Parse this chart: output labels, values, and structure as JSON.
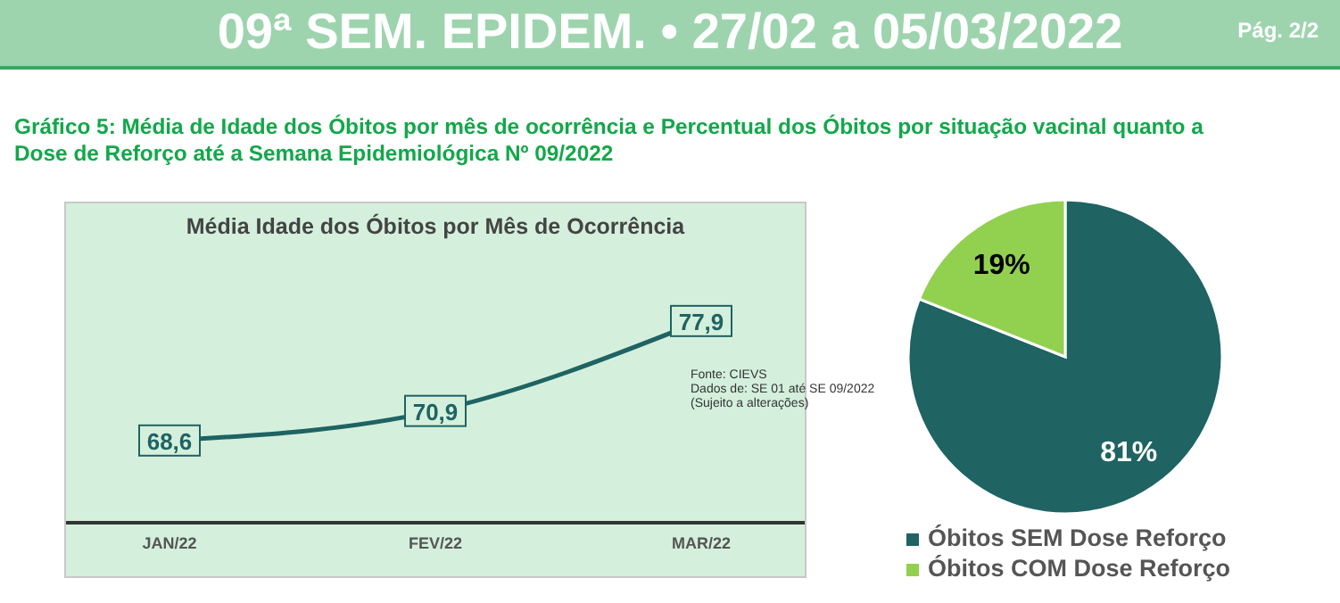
{
  "chart_data": [
    {
      "type": "other",
      "title": "09ª SEM. EPIDEM. • 27/02 a 05/03/2022",
      "subtitle": "Gráfico 5: Média de Idade dos Óbitos por mês de ocorrência e Percentual dos Óbitos por situação vacinal quanto a Dose de Reforço até a Semana Epidemiológica Nº 09/2022",
      "annotations": [
        "Pág. 2/2"
      ]
    },
    {
      "type": "line",
      "title": "Média Idade dos Óbitos por Mês de Ocorrência",
      "categories": [
        "JAN/22",
        "FEV/22",
        "MAR/22"
      ],
      "color": "#1f6363",
      "values": [
        68.6,
        70.9,
        77.9
      ],
      "value_labels": [
        "68,6",
        "70,9",
        "77,9"
      ],
      "marker": "square",
      "annotations": [
        "Fonte: CIEVS",
        "Dados de: SE 01 até SE 09/2022",
        "(Sujeito a alterações)"
      ]
    },
    {
      "type": "pie",
      "categories": [
        "Óbitos SEM Dose Reforço",
        "Óbitos COM Dose Reforço"
      ],
      "values": [
        81,
        19
      ],
      "colors": [
        "#1f6363",
        "#92d050"
      ],
      "value_labels": [
        "81%",
        "19%"
      ],
      "legend": "bottom"
    }
  ]
}
